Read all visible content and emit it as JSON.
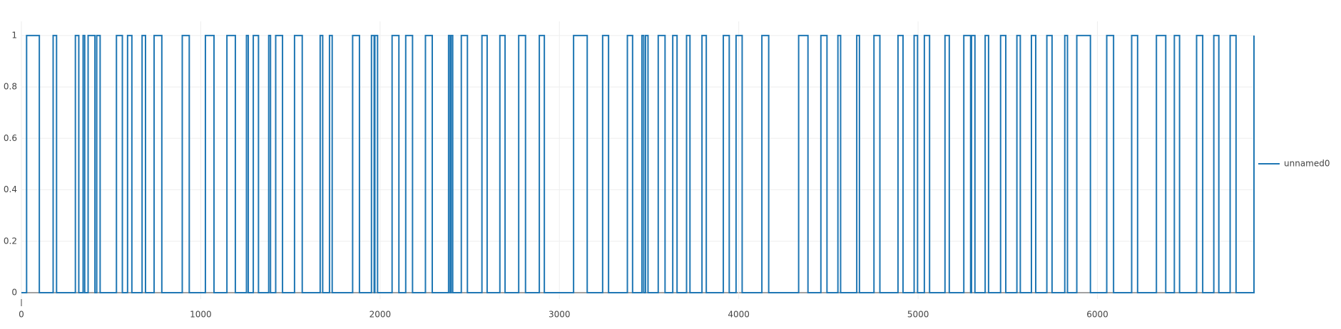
{
  "chart_data": {
    "type": "line",
    "line_shape": "hv",
    "grid": true,
    "x": [
      0,
      29,
      100,
      177,
      196,
      301,
      320,
      344,
      353,
      372,
      410,
      420,
      439,
      530,
      563,
      592,
      616,
      673,
      692,
      740,
      783,
      897,
      936,
      1026,
      1074,
      1146,
      1193,
      1255,
      1265,
      1293,
      1322,
      1379,
      1389,
      1418,
      1456,
      1523,
      1566,
      1666,
      1680,
      1718,
      1733,
      1847,
      1885,
      1952,
      1967,
      1971,
      1986,
      2067,
      2105,
      2143,
      2181,
      2253,
      2291,
      2382,
      2391,
      2396,
      2405,
      2453,
      2487,
      2568,
      2597,
      2668,
      2697,
      2773,
      2811,
      2888,
      2916,
      3079,
      3155,
      3241,
      3274,
      3379,
      3408,
      3460,
      3470,
      3480,
      3494,
      3551,
      3589,
      3632,
      3656,
      3709,
      3728,
      3795,
      3819,
      3914,
      3947,
      3985,
      4019,
      4129,
      4167,
      4334,
      4386,
      4458,
      4492,
      4553,
      4568,
      4658,
      4673,
      4754,
      4787,
      4888,
      4916,
      4978,
      4997,
      5035,
      5064,
      5150,
      5174,
      5255,
      5293,
      5298,
      5317,
      5374,
      5393,
      5460,
      5489,
      5551,
      5570,
      5632,
      5656,
      5718,
      5747,
      5818,
      5833,
      5885,
      5961,
      6052,
      6090,
      6191,
      6224,
      6329,
      6381,
      6429,
      6458,
      6553,
      6587,
      6649,
      6677,
      6740,
      6773,
      6873
    ],
    "series": [
      {
        "name": "unnamed0",
        "color": "#1f77b4",
        "values": [
          0,
          1,
          0,
          1,
          0,
          1,
          0,
          1,
          0,
          1,
          0,
          1,
          0,
          1,
          0,
          1,
          0,
          1,
          0,
          1,
          0,
          1,
          0,
          1,
          0,
          1,
          0,
          1,
          0,
          1,
          0,
          1,
          0,
          1,
          0,
          1,
          0,
          1,
          0,
          1,
          0,
          1,
          0,
          1,
          0,
          1,
          0,
          1,
          0,
          1,
          0,
          1,
          0,
          1,
          0,
          1,
          0,
          1,
          0,
          1,
          0,
          1,
          0,
          1,
          0,
          1,
          0,
          1,
          0,
          1,
          0,
          1,
          0,
          1,
          0,
          1,
          0,
          1,
          0,
          1,
          0,
          1,
          0,
          1,
          0,
          1,
          0,
          1,
          0,
          1,
          0,
          1,
          0,
          1,
          0,
          1,
          0,
          1,
          0,
          1,
          0,
          1,
          0,
          1,
          0,
          1,
          0,
          1,
          0,
          1,
          0,
          1,
          0,
          1,
          0,
          1,
          0,
          1,
          0,
          1,
          0,
          1,
          0,
          1,
          0,
          1,
          0,
          1,
          0,
          1,
          0,
          1,
          0,
          1,
          0,
          1,
          0,
          1,
          0,
          1,
          0,
          1
        ]
      }
    ],
    "xlim": [
      0,
      6873
    ],
    "xticks": [
      0,
      1000,
      2000,
      3000,
      4000,
      5000,
      6000
    ],
    "ylim": [
      -0.025,
      1.055
    ],
    "yticks": [
      0,
      0.2,
      0.4,
      0.6,
      0.8,
      1
    ]
  }
}
